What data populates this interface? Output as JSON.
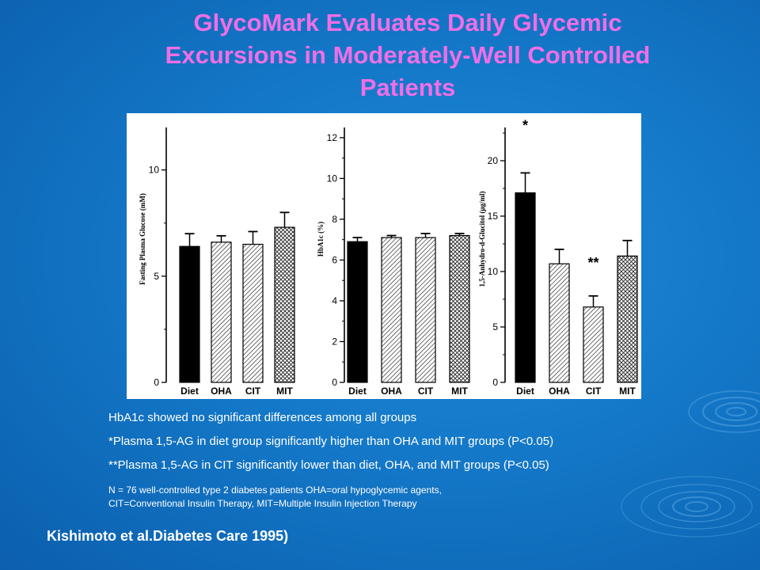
{
  "title_lines": [
    "GlycoMark Evaluates Daily Glycemic",
    "Excursions in Moderately-Well Controlled",
    "Patients"
  ],
  "notes": {
    "line1": "HbA1c showed no significant differences among all groups",
    "line2": "*Plasma 1,5-AG in diet group significantly higher than OHA and MIT groups (P<0.05)",
    "line3": "**Plasma 1,5-AG in CIT significantly lower than diet, OHA, and MIT groups (P<0.05)",
    "line4a": "N = 76 well-controlled type 2 diabetes patients    OHA=oral hypoglycemic agents,",
    "line4b": "CIT=Conventional Insulin Therapy, MIT=Multiple Insulin Injection Therapy"
  },
  "citation": "Kishimoto et al.Diabetes Care 1995)",
  "colors": {
    "title": "#f06ee6",
    "background": "#1478c8",
    "bar_fill": "#000000"
  },
  "chart_data": [
    {
      "type": "bar",
      "ylabel": "Fasting Plasma Glucose (mM)",
      "categories": [
        "Diet",
        "OHA",
        "CIT",
        "MIT"
      ],
      "values": [
        6.4,
        6.6,
        6.5,
        7.3
      ],
      "errors": [
        0.6,
        0.3,
        0.6,
        0.7
      ],
      "patterns": [
        "solid",
        "hatch",
        "hatch",
        "crosshatch"
      ],
      "yticks": [
        0,
        5,
        10
      ],
      "ylim": [
        0,
        12
      ],
      "annotations": []
    },
    {
      "type": "bar",
      "ylabel": "HbA1c (%)",
      "categories": [
        "Diet",
        "OHA",
        "CIT",
        "MIT"
      ],
      "values": [
        6.9,
        7.1,
        7.1,
        7.2
      ],
      "errors": [
        0.2,
        0.1,
        0.2,
        0.1
      ],
      "patterns": [
        "solid",
        "hatch",
        "hatch",
        "crosshatch"
      ],
      "yticks": [
        0,
        2,
        4,
        6,
        8,
        10,
        12
      ],
      "ylim": [
        0,
        12.5
      ],
      "annotations": []
    },
    {
      "type": "bar",
      "ylabel": "1,5-Anhydro-d-Glucitol (μg/ml)",
      "categories": [
        "Diet",
        "OHA",
        "CIT",
        "MIT"
      ],
      "values": [
        17.1,
        10.7,
        6.8,
        11.4
      ],
      "errors": [
        1.8,
        1.3,
        1.0,
        1.4
      ],
      "patterns": [
        "solid",
        "hatch",
        "hatch",
        "crosshatch"
      ],
      "yticks": [
        0,
        5,
        10,
        15,
        20
      ],
      "ylim": [
        0,
        23
      ],
      "annotations": [
        {
          "bar": 0,
          "text": "*"
        },
        {
          "bar": 2,
          "text": "**"
        }
      ]
    }
  ]
}
